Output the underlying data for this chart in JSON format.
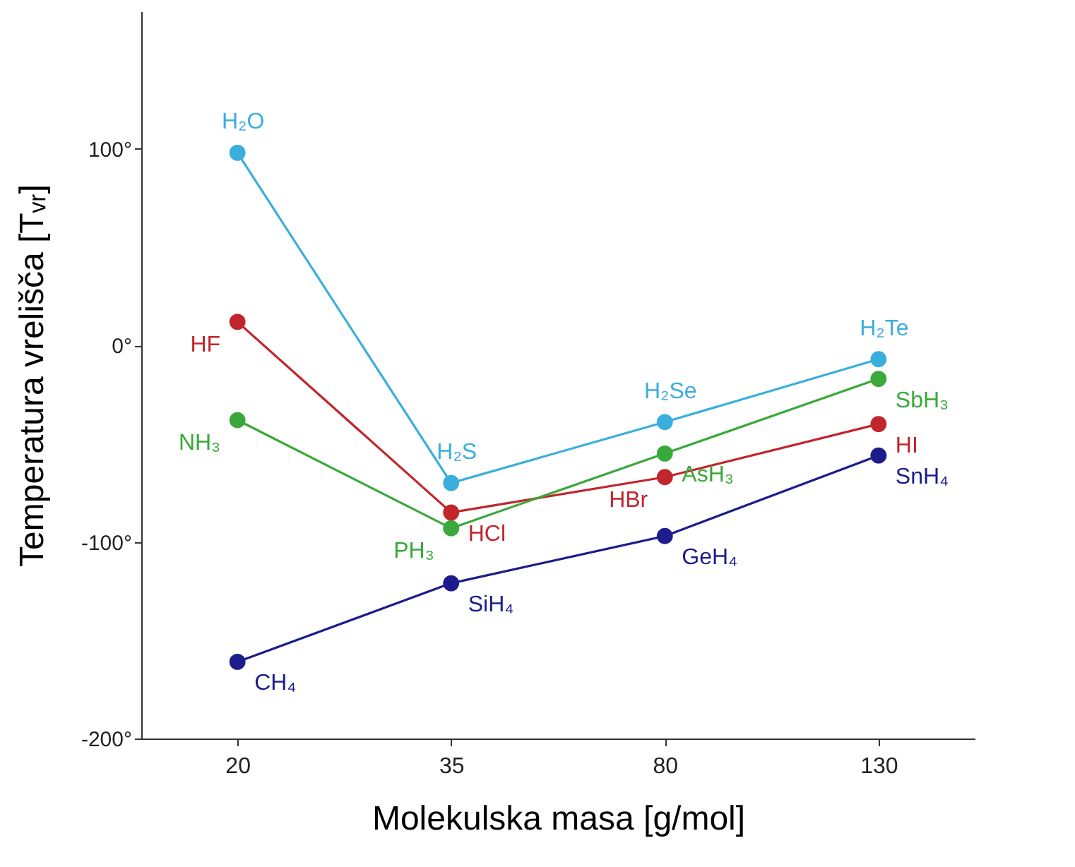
{
  "chart_data": {
    "type": "line",
    "xlabel": "Molekulska masa [g/mol]",
    "ylabel": "Temperatura vrelišča [Tᵥᵣ]",
    "categories": [
      "20",
      "35",
      "80",
      "130"
    ],
    "series": [
      {
        "color": "#3aaedc",
        "values": [
          98,
          -70,
          -39,
          -7
        ]
      },
      {
        "color": "#c0262c",
        "values": [
          12,
          -85,
          -67,
          -40
        ]
      },
      {
        "color": "#3aa83a",
        "values": [
          -38,
          -93,
          -55,
          -17
        ]
      },
      {
        "color": "#1c1c8c",
        "values": [
          -161,
          -121,
          -97,
          -56
        ]
      }
    ],
    "ylim": [
      -200,
      170
    ],
    "yticks": [
      {
        "value": -200,
        "label": "-200°"
      },
      {
        "value": -100,
        "label": "-100°"
      },
      {
        "value": 0,
        "label": "0°"
      },
      {
        "value": 100,
        "label": "100°"
      }
    ],
    "grid": false,
    "legend": false,
    "marker": "circle",
    "line_style": "solid",
    "annotations": [
      {
        "text": "H₂O",
        "x": "20",
        "y": 98
      },
      {
        "text": "HF",
        "x": "20",
        "y": 12
      },
      {
        "text": "NH₃",
        "x": "20",
        "y": -38
      },
      {
        "text": "CH₄",
        "x": "20",
        "y": -161
      },
      {
        "text": "H₂S",
        "x": "35",
        "y": -70
      },
      {
        "text": "HCl",
        "x": "35",
        "y": -85
      },
      {
        "text": "PH₃",
        "x": "35",
        "y": -93
      },
      {
        "text": "SiH₄",
        "x": "35",
        "y": -121
      },
      {
        "text": "H₂Se",
        "x": "80",
        "y": -39
      },
      {
        "text": "AsH₃",
        "x": "80",
        "y": -55
      },
      {
        "text": "HBr",
        "x": "80",
        "y": -67
      },
      {
        "text": "GeH₄",
        "x": "80",
        "y": -97
      },
      {
        "text": "H₂Te",
        "x": "130",
        "y": -7
      },
      {
        "text": "SbH₃",
        "x": "130",
        "y": -17
      },
      {
        "text": "HI",
        "x": "130",
        "y": -40
      },
      {
        "text": "SnH₄",
        "x": "130",
        "y": -56
      }
    ]
  }
}
